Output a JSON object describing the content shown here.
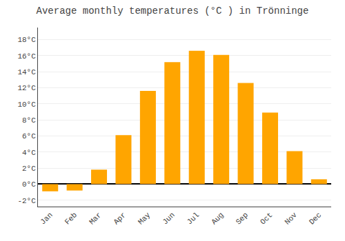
{
  "chart_data": {
    "type": "bar",
    "title": "Average monthly temperatures (°C ) in Trönninge",
    "categories": [
      "Jan",
      "Feb",
      "Mar",
      "Apr",
      "May",
      "Jun",
      "Jul",
      "Aug",
      "Sep",
      "Oct",
      "Nov",
      "Dec"
    ],
    "values": [
      -0.9,
      -0.8,
      1.8,
      6.1,
      11.6,
      15.2,
      16.6,
      16.1,
      12.6,
      8.9,
      4.1,
      0.6
    ],
    "color": "#FFA500",
    "ylim": [
      -2.8,
      19.5
    ],
    "yticks": [
      {
        "value": -2,
        "label": "-2°C"
      },
      {
        "value": 0,
        "label": "0°C"
      },
      {
        "value": 2,
        "label": "2°C"
      },
      {
        "value": 4,
        "label": "4°C"
      },
      {
        "value": 6,
        "label": "6°C"
      },
      {
        "value": 8,
        "label": "8°C"
      },
      {
        "value": 10,
        "label": "10°C"
      },
      {
        "value": 12,
        "label": "12°C"
      },
      {
        "value": 14,
        "label": "14°C"
      },
      {
        "value": 16,
        "label": "16°C"
      },
      {
        "value": 18,
        "label": "18°C"
      }
    ],
    "grid": true
  }
}
